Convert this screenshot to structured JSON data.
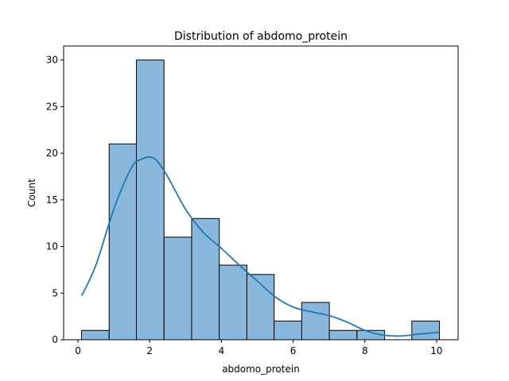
{
  "chart_data": {
    "type": "bar",
    "title": "Distribution of abdomo_protein",
    "xlabel": "abdomo_protein",
    "ylabel": "Count",
    "bins": [
      {
        "start": 0.1,
        "end": 0.87,
        "count": 1
      },
      {
        "start": 0.87,
        "end": 1.63,
        "count": 21
      },
      {
        "start": 1.63,
        "end": 2.4,
        "count": 30
      },
      {
        "start": 2.4,
        "end": 3.17,
        "count": 11
      },
      {
        "start": 3.17,
        "end": 3.94,
        "count": 13
      },
      {
        "start": 3.94,
        "end": 4.71,
        "count": 8
      },
      {
        "start": 4.71,
        "end": 5.47,
        "count": 7
      },
      {
        "start": 5.47,
        "end": 6.24,
        "count": 2
      },
      {
        "start": 6.24,
        "end": 7.01,
        "count": 4
      },
      {
        "start": 7.01,
        "end": 7.78,
        "count": 1
      },
      {
        "start": 7.78,
        "end": 8.55,
        "count": 1
      },
      {
        "start": 8.55,
        "end": 9.31,
        "count": 0
      },
      {
        "start": 9.31,
        "end": 10.08,
        "count": 2
      }
    ],
    "kde": {
      "x": [
        0.1,
        0.5,
        1.0,
        1.5,
        1.8,
        2.0,
        2.2,
        2.5,
        3.0,
        3.5,
        4.0,
        4.5,
        5.0,
        5.5,
        6.0,
        6.5,
        7.0,
        7.5,
        8.0,
        8.5,
        9.0,
        9.5,
        10.08
      ],
      "y": [
        4.7,
        8.0,
        14.0,
        18.5,
        19.4,
        19.6,
        19.2,
        17.5,
        14.0,
        11.5,
        9.8,
        8.0,
        6.3,
        4.6,
        3.5,
        3.0,
        2.6,
        1.9,
        1.0,
        0.5,
        0.4,
        0.6,
        0.8
      ]
    },
    "xlim": [
      -0.4,
      10.6
    ],
    "ylim": [
      0,
      31.5
    ],
    "xticks": [
      0,
      2,
      4,
      6,
      8,
      10
    ],
    "yticks": [
      0,
      5,
      10,
      15,
      20,
      25,
      30
    ],
    "bar_fill": "#8ab8dd",
    "bar_edge": "#000000",
    "line_color": "#1f77b4",
    "grid": false,
    "legend": "none"
  }
}
